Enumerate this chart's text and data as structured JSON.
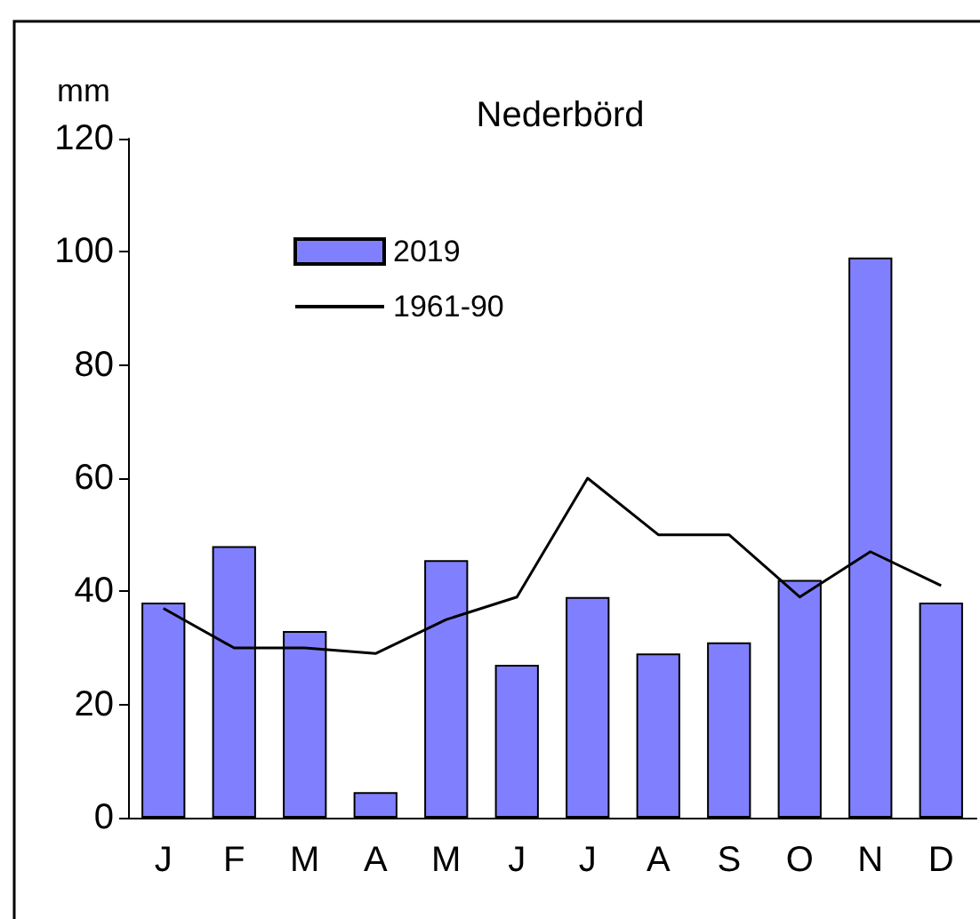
{
  "chart_data": {
    "type": "bar",
    "title": "Nederbörd",
    "ylabel": "mm",
    "categories": [
      "J",
      "F",
      "M",
      "A",
      "M",
      "J",
      "J",
      "A",
      "S",
      "O",
      "N",
      "D"
    ],
    "series": [
      {
        "name": "2019",
        "color": "#8080ff",
        "values": [
          38,
          48,
          33,
          4.5,
          45.5,
          27,
          39,
          29,
          31,
          42,
          99,
          38
        ]
      },
      {
        "name": "1961-90",
        "type": "line",
        "color": "#000000",
        "values": [
          37,
          30,
          30,
          29,
          35,
          39,
          60,
          50,
          50,
          39,
          47,
          41
        ]
      }
    ],
    "ylim": [
      0,
      120
    ],
    "yticks": [
      0,
      20,
      40,
      60,
      80,
      100,
      120
    ],
    "grid": false,
    "legend": "top left"
  }
}
